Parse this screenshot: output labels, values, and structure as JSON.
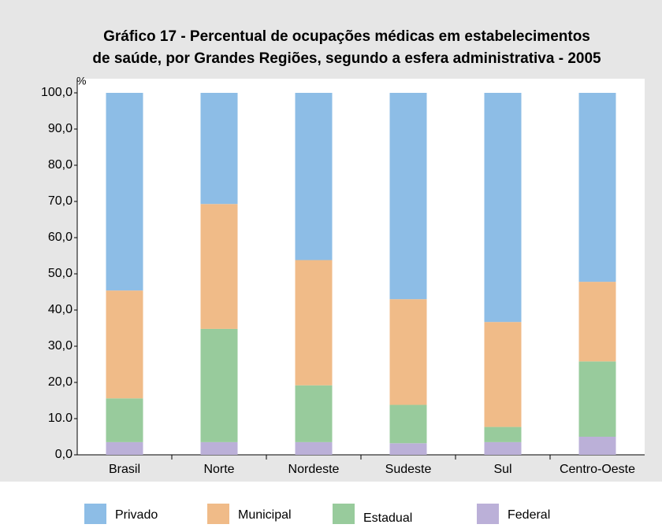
{
  "chart_data": {
    "type": "stacked_bar",
    "title": "Gráfico 17 - Percentual de ocupações médicas em estabelecimentos",
    "subtitle": "de saúde, por Grandes Regiões, segundo a esfera administrativa - 2005",
    "y_label": "%",
    "categories": [
      "Brasil",
      "Norte",
      "Nordeste",
      "Sudeste",
      "Sul",
      "Centro-Oeste"
    ],
    "series": [
      {
        "name": "Privado",
        "color": "#8dbde6",
        "values": [
          54.6,
          30.7,
          46.2,
          57.0,
          63.3,
          52.2
        ]
      },
      {
        "name": "Municipal",
        "color": "#f0bb88",
        "values": [
          29.8,
          34.5,
          34.6,
          29.2,
          29.0,
          22.0
        ]
      },
      {
        "name": "Estadual",
        "color": "#98cb9c",
        "values": [
          12.1,
          31.3,
          15.7,
          10.6,
          4.2,
          20.8
        ]
      },
      {
        "name": "Federal",
        "color": "#bbb0d8",
        "values": [
          3.5,
          3.5,
          3.5,
          3.2,
          3.5,
          5.0
        ]
      }
    ],
    "ylim": [
      0,
      100
    ],
    "yticks": [
      {
        "value": 0,
        "label": "0,0"
      },
      {
        "value": 10,
        "label": "10.0"
      },
      {
        "value": 20,
        "label": "20,0"
      },
      {
        "value": 30,
        "label": "30,0"
      },
      {
        "value": 40,
        "label": "40,0"
      },
      {
        "value": 50,
        "label": "50,0"
      },
      {
        "value": 60,
        "label": "60,0"
      },
      {
        "value": 70,
        "label": "70,0"
      },
      {
        "value": 80,
        "label": "80,0"
      },
      {
        "value": 90,
        "label": "90,0"
      },
      {
        "value": 100,
        "label": "100,0"
      }
    ]
  }
}
